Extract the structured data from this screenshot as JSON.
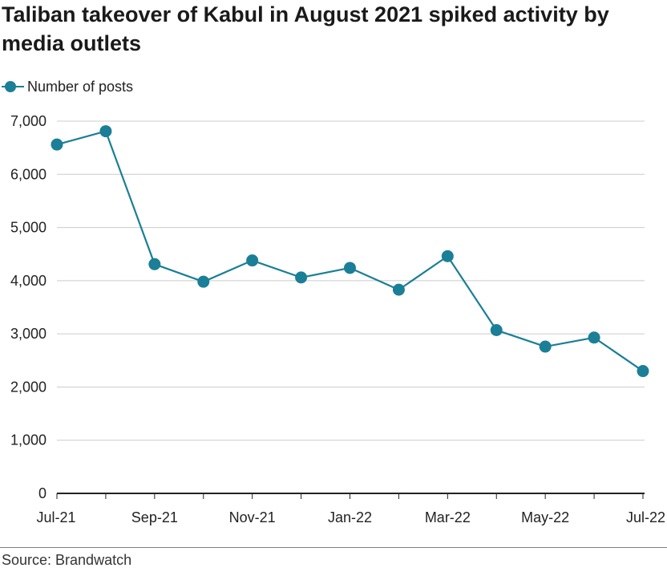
{
  "title": "Taliban takeover of Kabul in August 2021 spiked activity by media outlets",
  "source": "Source: Brandwatch",
  "colors": {
    "series": "#1a7f97",
    "grid": "#cccccc",
    "axis": "#222222"
  },
  "chart_data": {
    "type": "line",
    "title": "Taliban takeover of Kabul in August 2021 spiked activity by media outlets",
    "xlabel": "",
    "ylabel": "",
    "x": [
      "Jul-21",
      "Aug-21",
      "Sep-21",
      "Oct-21",
      "Nov-21",
      "Dec-21",
      "Jan-22",
      "Feb-22",
      "Mar-22",
      "Apr-22",
      "May-22",
      "Jun-22",
      "Jul-22"
    ],
    "x_tick_labels": [
      "Jul-21",
      "Sep-21",
      "Nov-21",
      "Jan-22",
      "Mar-22",
      "May-22",
      "Jul-22"
    ],
    "y_tick_labels": [
      "0",
      "1,000",
      "2,000",
      "3,000",
      "4,000",
      "5,000",
      "6,000",
      "7,000"
    ],
    "ylim": [
      0,
      7000
    ],
    "grid": true,
    "legend_position": "top-left",
    "series": [
      {
        "name": "Number of posts",
        "values": [
          6560,
          6810,
          4310,
          3980,
          4380,
          4060,
          4240,
          3830,
          4460,
          3070,
          2760,
          2930,
          2300
        ]
      }
    ]
  }
}
